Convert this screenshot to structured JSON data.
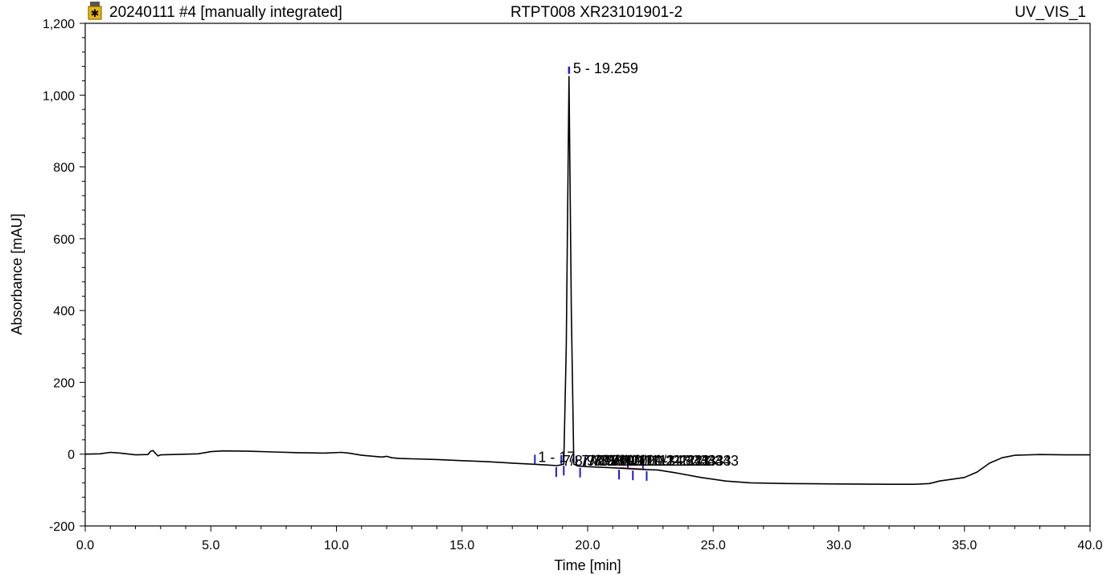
{
  "header": {
    "sample": "20240111 #4 [manually integrated]",
    "project": "RTPT008 XR23101901-2",
    "channel": "UV_VIS_1",
    "vial_icon": "sample-vial-icon"
  },
  "chart_data": {
    "type": "line",
    "xlabel": "Time [min]",
    "ylabel": "Absorbance [mAU]",
    "xlim": [
      0,
      40
    ],
    "ylim": [
      -200,
      1200
    ],
    "x_ticks": [
      0,
      5,
      10,
      15,
      20,
      25,
      30,
      35,
      40
    ],
    "x_tick_labels": [
      "0.0",
      "5.0",
      "10.0",
      "15.0",
      "20.0",
      "25.0",
      "30.0",
      "35.0",
      "40.0"
    ],
    "y_ticks": [
      -200,
      0,
      200,
      400,
      600,
      800,
      1000,
      1200
    ],
    "y_tick_labels": [
      "-200",
      "0",
      "200",
      "400",
      "600",
      "800",
      "1,000",
      "1,200"
    ],
    "grid": false,
    "line_color": "#000000",
    "marker_color": "#1a1adc",
    "baseline_color": "#e02020",
    "series": [
      {
        "x": [
          0,
          0.6,
          1.0,
          1.4,
          2.0,
          2.5,
          2.6,
          2.7,
          2.8,
          2.9,
          3.0,
          3.5,
          4.5,
          5.0,
          5.5,
          6.5,
          7.5,
          8.5,
          9.5,
          10.2,
          10.5,
          11.0,
          11.8,
          12.0,
          12.2,
          12.5,
          13.0,
          14.0,
          15.0,
          16.0,
          17.0,
          17.8,
          18.3,
          18.8,
          19.05,
          19.15,
          19.259,
          19.35,
          19.45,
          19.6,
          20.0,
          21.0,
          22.0,
          22.8,
          23.5,
          24.5,
          25.5,
          26.5,
          28.0,
          30.0,
          32.0,
          33.0,
          33.6,
          34.0,
          35.0,
          35.5,
          36.0,
          36.5,
          37.0,
          38.0,
          39.0,
          40.0
        ],
        "y": [
          0,
          1,
          5,
          3,
          -2,
          -1,
          8,
          10,
          2,
          -5,
          -2,
          -1,
          1,
          7,
          9,
          8,
          6,
          4,
          3,
          5,
          3,
          -3,
          -8,
          -6,
          -10,
          -12,
          -13,
          -15,
          -18,
          -21,
          -25,
          -28,
          -30,
          -32,
          -28,
          300,
          1052,
          400,
          -28,
          -33,
          -35,
          -38,
          -42,
          -44,
          -52,
          -65,
          -75,
          -80,
          -82,
          -83,
          -84,
          -84,
          -82,
          -75,
          -65,
          -50,
          -25,
          -10,
          -3,
          -1,
          -2,
          -2
        ]
      }
    ],
    "peak_label": "5 - 19.259",
    "peak_label_anchor": [
      19.259,
      1075
    ],
    "minor_peak_label_lead": "1 - 17.",
    "minor_peak_label_overlap": "7/8/9/10/11 - 21.343",
    "minor_peak_label_anchor": [
      17.9,
      -9
    ],
    "peak_markers": [
      17.9,
      18.75,
      18.95,
      19.05,
      19.55,
      19.7,
      19.9,
      21.25,
      21.6,
      21.8,
      22.2,
      22.35
    ],
    "integration_baseline": [
      [
        21.3,
        -38
      ],
      [
        22.3,
        -42
      ]
    ]
  }
}
